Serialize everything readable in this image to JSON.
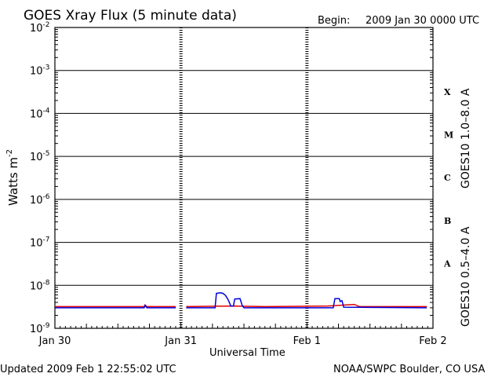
{
  "header": {
    "title": "GOES Xray Flux (5 minute data)",
    "begin_label": "Begin:",
    "begin_value": "2009 Jan 30 0000 UTC"
  },
  "footer": {
    "updated": "Updated 2009 Feb  1 22:55:02 UTC",
    "credit": "NOAA/SWPC Boulder, CO USA"
  },
  "colors": {
    "long_channel": "#e00000",
    "short_channel": "#0000e0",
    "axes": "#000000"
  },
  "chart_data": {
    "type": "line",
    "title": "GOES Xray Flux (5 minute data)",
    "xlabel": "Universal Time",
    "ylabel": "Watts m",
    "ylabel_sup": "-2",
    "y_scale": "log",
    "ylim": [
      1e-09,
      0.01
    ],
    "y_ticks": [
      {
        "base": "10",
        "exp": "-2",
        "value": 0.01
      },
      {
        "base": "10",
        "exp": "-3",
        "value": 0.001
      },
      {
        "base": "10",
        "exp": "-4",
        "value": 0.0001
      },
      {
        "base": "10",
        "exp": "-5",
        "value": 1e-05
      },
      {
        "base": "10",
        "exp": "-6",
        "value": 1e-06
      },
      {
        "base": "10",
        "exp": "-7",
        "value": 1e-07
      },
      {
        "base": "10",
        "exp": "-8",
        "value": 1e-08
      },
      {
        "base": "10",
        "exp": "-9",
        "value": 1e-09
      }
    ],
    "xlim": [
      "2009-01-30 00:00",
      "2009-02-02 00:00"
    ],
    "x_ticks": [
      "Jan 30",
      "Jan 31",
      "Feb 1",
      "Feb 2"
    ],
    "flare_classes": [
      {
        "label": "X",
        "value": 0.00032
      },
      {
        "label": "M",
        "value": 3.2e-05
      },
      {
        "label": "C",
        "value": 3.2e-06
      },
      {
        "label": "B",
        "value": 3.2e-07
      },
      {
        "label": "A",
        "value": 3.2e-08
      }
    ],
    "grid": true,
    "series": [
      {
        "name": "GOES10 1.0–8.0 A",
        "color": "#e00000",
        "points": [
          [
            "2009-01-30 00:00",
            3.2e-09
          ],
          [
            "2009-01-30 17:00",
            3.2e-09
          ],
          [
            "2009-01-30 17:10",
            3.5e-09
          ],
          [
            "2009-01-30 17:30",
            3.2e-09
          ],
          [
            "2009-01-30 23:00",
            3.2e-09
          ],
          [
            "2009-01-30 23:30",
            null
          ],
          [
            "2009-01-31 01:00",
            3.2e-09
          ],
          [
            "2009-01-31 10:00",
            3.3e-09
          ],
          [
            "2009-01-31 16:00",
            3.2e-09
          ],
          [
            "2009-02-01 04:00",
            3.3e-09
          ],
          [
            "2009-02-01 09:00",
            3.6e-09
          ],
          [
            "2009-02-01 10:00",
            3.2e-09
          ],
          [
            "2009-02-01 22:50",
            3.2e-09
          ]
        ]
      },
      {
        "name": "GOES10 0.5–4.0 A",
        "color": "#0000e0",
        "points": [
          [
            "2009-01-30 00:00",
            3e-09
          ],
          [
            "2009-01-30 17:00",
            3e-09
          ],
          [
            "2009-01-30 17:10",
            3.4e-09
          ],
          [
            "2009-01-30 17:30",
            3e-09
          ],
          [
            "2009-01-30 23:00",
            3e-09
          ],
          [
            "2009-01-30 23:30",
            null
          ],
          [
            "2009-01-31 01:00",
            3e-09
          ],
          [
            "2009-01-31 06:30",
            3e-09
          ],
          [
            "2009-01-31 06:45",
            6.5e-09
          ],
          [
            "2009-01-31 07:30",
            6.7e-09
          ],
          [
            "2009-01-31 08:00",
            6.5e-09
          ],
          [
            "2009-01-31 08:30",
            5.8e-09
          ],
          [
            "2009-01-31 09:00",
            4.6e-09
          ],
          [
            "2009-01-31 09:30",
            3.3e-09
          ],
          [
            "2009-01-31 10:00",
            3.3e-09
          ],
          [
            "2009-01-31 10:15",
            4.8e-09
          ],
          [
            "2009-01-31 11:15",
            4.9e-09
          ],
          [
            "2009-01-31 11:40",
            3.4e-09
          ],
          [
            "2009-01-31 12:00",
            3e-09
          ],
          [
            "2009-02-01 05:00",
            3e-09
          ],
          [
            "2009-02-01 05:20",
            4.9e-09
          ],
          [
            "2009-02-01 06:10",
            4.9e-09
          ],
          [
            "2009-02-01 06:20",
            4.2e-09
          ],
          [
            "2009-02-01 06:40",
            4.4e-09
          ],
          [
            "2009-02-01 07:00",
            3.1e-09
          ],
          [
            "2009-02-01 22:50",
            3e-09
          ]
        ]
      }
    ]
  }
}
